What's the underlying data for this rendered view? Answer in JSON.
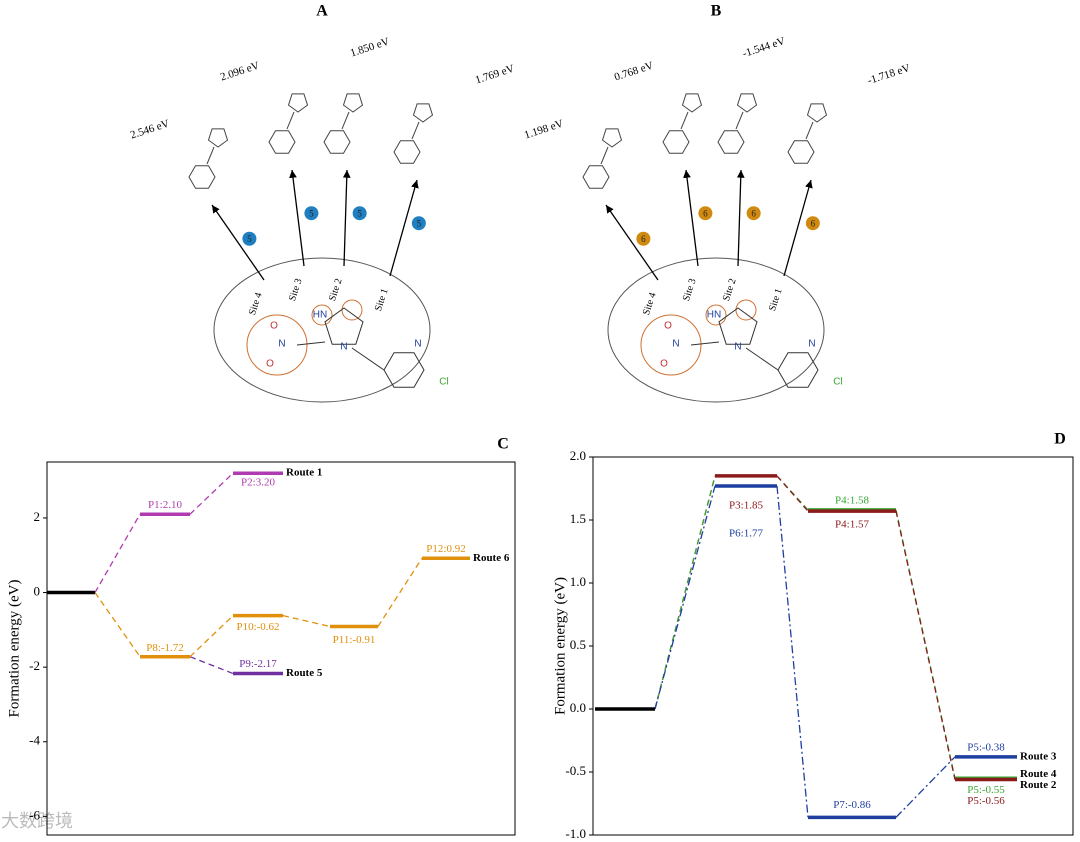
{
  "panels": [
    {
      "label": "A",
      "energies": [
        "2.546 eV",
        "2.096 eV",
        "1.850 eV",
        "1.769 eV"
      ],
      "sites": [
        "Site 4",
        "Site 3",
        "Site 2",
        "Site 1"
      ],
      "step": "5",
      "color": "#1f7fc0",
      "atoms": [
        "HN",
        "N",
        "N",
        "Cl",
        "N",
        "O",
        "O"
      ]
    },
    {
      "label": "B",
      "energies": [
        "1.198 eV",
        "0.768 eV",
        "-1.544 eV",
        "-1.718 eV"
      ],
      "sites": [
        "Site 4",
        "Site 3",
        "Site 2",
        "Site 1"
      ],
      "step": "6",
      "color": "#d08a10",
      "atoms": [
        "HN",
        "N",
        "N",
        "Cl",
        "N",
        "O",
        "O"
      ]
    }
  ],
  "chart_data": [
    {
      "type": "level",
      "title": "C",
      "ylabel": "Formation energy (eV)",
      "ylim": [
        -6.5,
        3.5
      ],
      "yticks": [
        2,
        0,
        -2,
        -4,
        -6
      ],
      "levels": [
        {
          "value": 0,
          "color": "#000000"
        },
        {
          "value": 2.1,
          "label": "P1:2.10",
          "color": "#b03ab0"
        },
        {
          "value": 3.2,
          "label": "P2:3.20",
          "color": "#b03ab0",
          "route": "Route 1"
        },
        {
          "value": -1.72,
          "label": "P8:-1.72",
          "color": "#e0900a"
        },
        {
          "value": -2.17,
          "label": "P9:-2.17",
          "color": "#7030a0",
          "route": "Route 5"
        },
        {
          "value": -0.62,
          "label": "P10:-0.62",
          "color": "#e0900a"
        },
        {
          "value": -0.91,
          "label": "P11:-0.91",
          "color": "#e0900a"
        },
        {
          "value": 0.92,
          "label": "P12:0.92",
          "color": "#e0900a",
          "route": "Route 6"
        }
      ],
      "links": [
        {
          "from": 0,
          "to": 1,
          "color": "#b03ab0"
        },
        {
          "from": 1,
          "to": 2,
          "color": "#b03ab0"
        },
        {
          "from": 0,
          "to": 3,
          "color": "#e0900a"
        },
        {
          "from": 3,
          "to": 4,
          "color": "#7030a0"
        },
        {
          "from": 3,
          "to": 5,
          "color": "#e0900a"
        },
        {
          "from": 5,
          "to": 6,
          "color": "#e0900a"
        },
        {
          "from": 6,
          "to": 7,
          "color": "#e0900a"
        }
      ]
    },
    {
      "type": "level",
      "title": "D",
      "ylabel": "Formation energy (eV)",
      "ylim": [
        -1.0,
        2.0
      ],
      "yticks": [
        {
          "value": 2.0,
          "label": "2.0"
        },
        {
          "value": 1.5,
          "label": "1.5"
        },
        {
          "value": 1.0,
          "label": "1.0"
        },
        {
          "value": 0.5,
          "label": "0.5"
        },
        {
          "value": 0.0,
          "label": "0.0"
        },
        {
          "value": -0.5,
          "label": "-0.5"
        },
        {
          "value": -1.0,
          "label": "-1.0"
        }
      ],
      "levels": [
        {
          "value": 0,
          "color": "#000000"
        },
        {
          "value": 1.85,
          "label": "P3:1.85",
          "color": "#8b1a1a"
        },
        {
          "value": 1.77,
          "label": "P6:1.77",
          "color": "#1f3fa0"
        },
        {
          "value": 1.58,
          "label": "P4:1.58",
          "color": "#3aa635"
        },
        {
          "value": 1.57,
          "label": "P4:1.57",
          "color": "#8b1a1a"
        },
        {
          "value": -0.86,
          "label": "P7:-0.86",
          "color": "#1f3fa0"
        },
        {
          "value": -0.38,
          "label": "P5:-0.38",
          "color": "#1f3fa0",
          "route": "Route 3"
        },
        {
          "value": -0.55,
          "label": "P5:-0.55",
          "color": "#3aa635",
          "route": "Route 4"
        },
        {
          "value": -0.56,
          "label": "P5:-0.56",
          "color": "#8b1a1a",
          "route": "Route 2"
        }
      ],
      "links": [
        {
          "from": 0,
          "to": 1,
          "color": "#8b1a1a"
        },
        {
          "from": 0,
          "to": 1,
          "color": "#3aa635"
        },
        {
          "from": 0,
          "to": 2,
          "color": "#1f3fa0"
        },
        {
          "from": 1,
          "to": 3,
          "color": "#3aa635"
        },
        {
          "from": 1,
          "to": 4,
          "color": "#8b1a1a"
        },
        {
          "from": 2,
          "to": 5,
          "color": "#1f3fa0"
        },
        {
          "from": 5,
          "to": 6,
          "color": "#1f3fa0"
        },
        {
          "from": 3,
          "to": 7,
          "color": "#3aa635"
        },
        {
          "from": 4,
          "to": 8,
          "color": "#8b1a1a"
        }
      ]
    }
  ],
  "watermark": "大数跨境"
}
